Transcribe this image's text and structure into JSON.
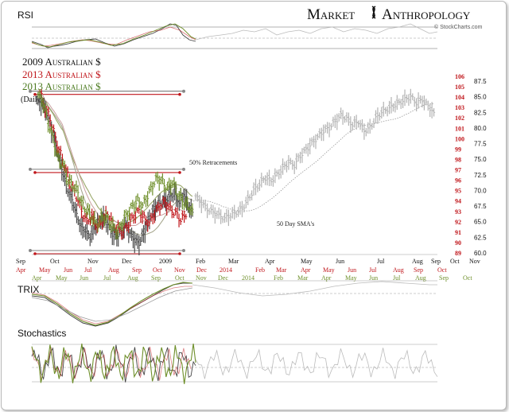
{
  "chart_data": {
    "type": "line",
    "brand": {
      "name": "Market Anthropology",
      "word1": "Market",
      "word2": "Anthropology",
      "credit": "© StockCharts.com"
    },
    "legend": [
      {
        "label": "2009 Australian $",
        "color": "#111111"
      },
      {
        "label": "2013 Australian $",
        "color": "#c0161b"
      },
      {
        "label": "2013 Australian $",
        "color": "#4b7a1f"
      }
    ],
    "daily_label": "(Daily)",
    "panels": {
      "rsi": "RSI",
      "trix": "TRIX",
      "stochastics": "Stochastics"
    },
    "annotations": {
      "retracement": "50% Retracements",
      "sma": "50 Day SMA's"
    },
    "colors": {
      "series_2009": "#4d4d4d",
      "series_2013": "#c0161b",
      "series_2013_green": "#6e8f2a",
      "projection": "#b3b3b3",
      "axis_red": "#c0161b"
    },
    "axis_2013_red": {
      "ticks": [
        89,
        90,
        91,
        92,
        93,
        94,
        95,
        96,
        97,
        98,
        99,
        100,
        101,
        102,
        103,
        104,
        105,
        106
      ]
    },
    "axis_2009": {
      "ticks": [
        "60.0",
        "62.5",
        "65.0",
        "67.5",
        "70.0",
        "72.5",
        "75.0",
        "77.5",
        "80.0",
        "82.5",
        "85.0",
        "87.5"
      ]
    },
    "x_axis_2009": [
      "Sep",
      "Oct",
      "Nov",
      "Dec",
      "2009",
      "Feb",
      "Mar",
      "Apr",
      "May",
      "Jun",
      "Jul",
      "Aug",
      "Sep",
      "Oct",
      "Nov"
    ],
    "x_axis_2013_red": [
      "Apr",
      "May",
      "Jun",
      "Jul",
      "Aug",
      "Sep",
      "Oct",
      "Nov",
      "Dec",
      "2014",
      "Feb",
      "Mar",
      "Apr",
      "May",
      "Jun",
      "Jul",
      "Aug",
      "Sep",
      "Oct"
    ],
    "x_axis_2013_green": [
      "Apr",
      "May",
      "Jun",
      "Jul",
      "Aug",
      "Sep",
      "Oct",
      "Nov",
      "Dec",
      "2014",
      "Feb",
      "Mar",
      "Apr",
      "May",
      "Jun",
      "Jul",
      "Aug",
      "Sep",
      "Oct"
    ],
    "series_2009_close": [
      84.5,
      84.0,
      83.0,
      80.5,
      78.0,
      75.5,
      72.5,
      70.0,
      68.5,
      66.0,
      64.0,
      63.5,
      62.5,
      64.0,
      65.0,
      65.5,
      64.5,
      63.0,
      62.5,
      63.5,
      64.5,
      63.0,
      62.0,
      61.5,
      63.0,
      65.0,
      66.5,
      67.5,
      68.0,
      68.5,
      69.0,
      69.5,
      68.0,
      69.5,
      67.5,
      66.5
    ],
    "series_2013_red_close": [
      104.5,
      103.0,
      102.0,
      100.0,
      98.5,
      97.0,
      95.5,
      94.5,
      93.0,
      92.0,
      92.5,
      91.5,
      92.0,
      92.8,
      91.8,
      91.2,
      91.0,
      91.8,
      92.5,
      93.0,
      92.3,
      91.8,
      92.8,
      93.5,
      93.8,
      93.2,
      92.8,
      92.2,
      92.5
    ],
    "series_2013_green_close": [
      104.2,
      103.5,
      101.5,
      100.0,
      98.0,
      97.5,
      96.0,
      95.5,
      94.8,
      93.5,
      93.0,
      92.2,
      91.8,
      92.5,
      92.2,
      91.5,
      91.0,
      92.0,
      92.8,
      93.5,
      94.0,
      93.5,
      94.5,
      95.5,
      96.2,
      95.8,
      95.2,
      95.8,
      94.8,
      94.0,
      93.5,
      93.2
    ],
    "series_projection_close": [
      69.0,
      68.0,
      67.0,
      66.5,
      66.0,
      65.5,
      66.0,
      66.5,
      67.0,
      68.5,
      70.0,
      71.0,
      72.0,
      71.5,
      72.5,
      73.5,
      74.5,
      74.0,
      75.5,
      76.5,
      77.5,
      78.5,
      79.5,
      80.0,
      81.0,
      82.0,
      81.5,
      80.5,
      81.0,
      79.5,
      80.0,
      81.5,
      82.5,
      83.0,
      83.5,
      84.0,
      84.5,
      85.0,
      84.0,
      84.5,
      83.5,
      82.5
    ],
    "retracement_levels_2009": [
      85.5,
      73.0,
      60.0
    ]
  }
}
